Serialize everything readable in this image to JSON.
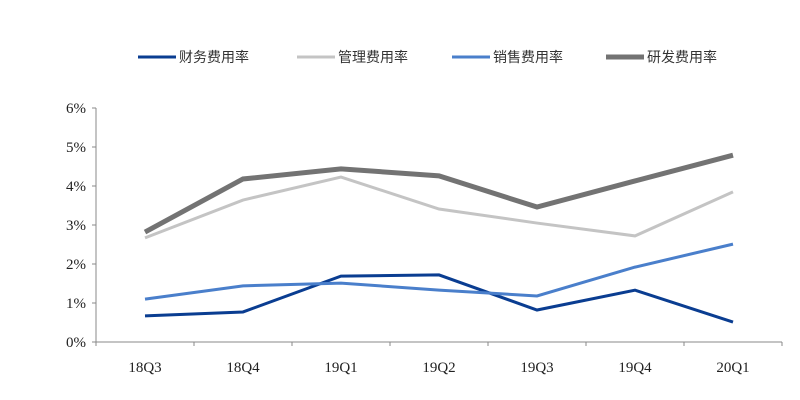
{
  "chart_data": {
    "type": "line",
    "title": "",
    "xlabel": "",
    "ylabel": "",
    "categories": [
      "18Q3",
      "18Q4",
      "19Q1",
      "19Q2",
      "19Q3",
      "19Q4",
      "20Q1"
    ],
    "ylim": [
      0,
      6
    ],
    "yticks": [
      "0%",
      "1%",
      "2%",
      "3%",
      "4%",
      "5%",
      "6%"
    ],
    "grid": false,
    "legend_position": "top",
    "series": [
      {
        "name": "财务费用率",
        "color": "#0a3d91",
        "width": 3,
        "values": [
          0.67,
          0.77,
          1.69,
          1.72,
          0.82,
          1.33,
          0.51
        ]
      },
      {
        "name": "管理费用率",
        "color": "#c4c4c4",
        "width": 3,
        "values": [
          2.67,
          3.64,
          4.23,
          3.41,
          3.05,
          2.72,
          3.85
        ]
      },
      {
        "name": "销售费用率",
        "color": "#4a7fcb",
        "width": 3,
        "values": [
          1.1,
          1.44,
          1.51,
          1.33,
          1.18,
          1.92,
          2.51
        ]
      },
      {
        "name": "研发费用率",
        "color": "#737373",
        "width": 5,
        "values": [
          2.82,
          4.18,
          4.44,
          4.26,
          3.46,
          4.13,
          4.79
        ]
      }
    ]
  }
}
